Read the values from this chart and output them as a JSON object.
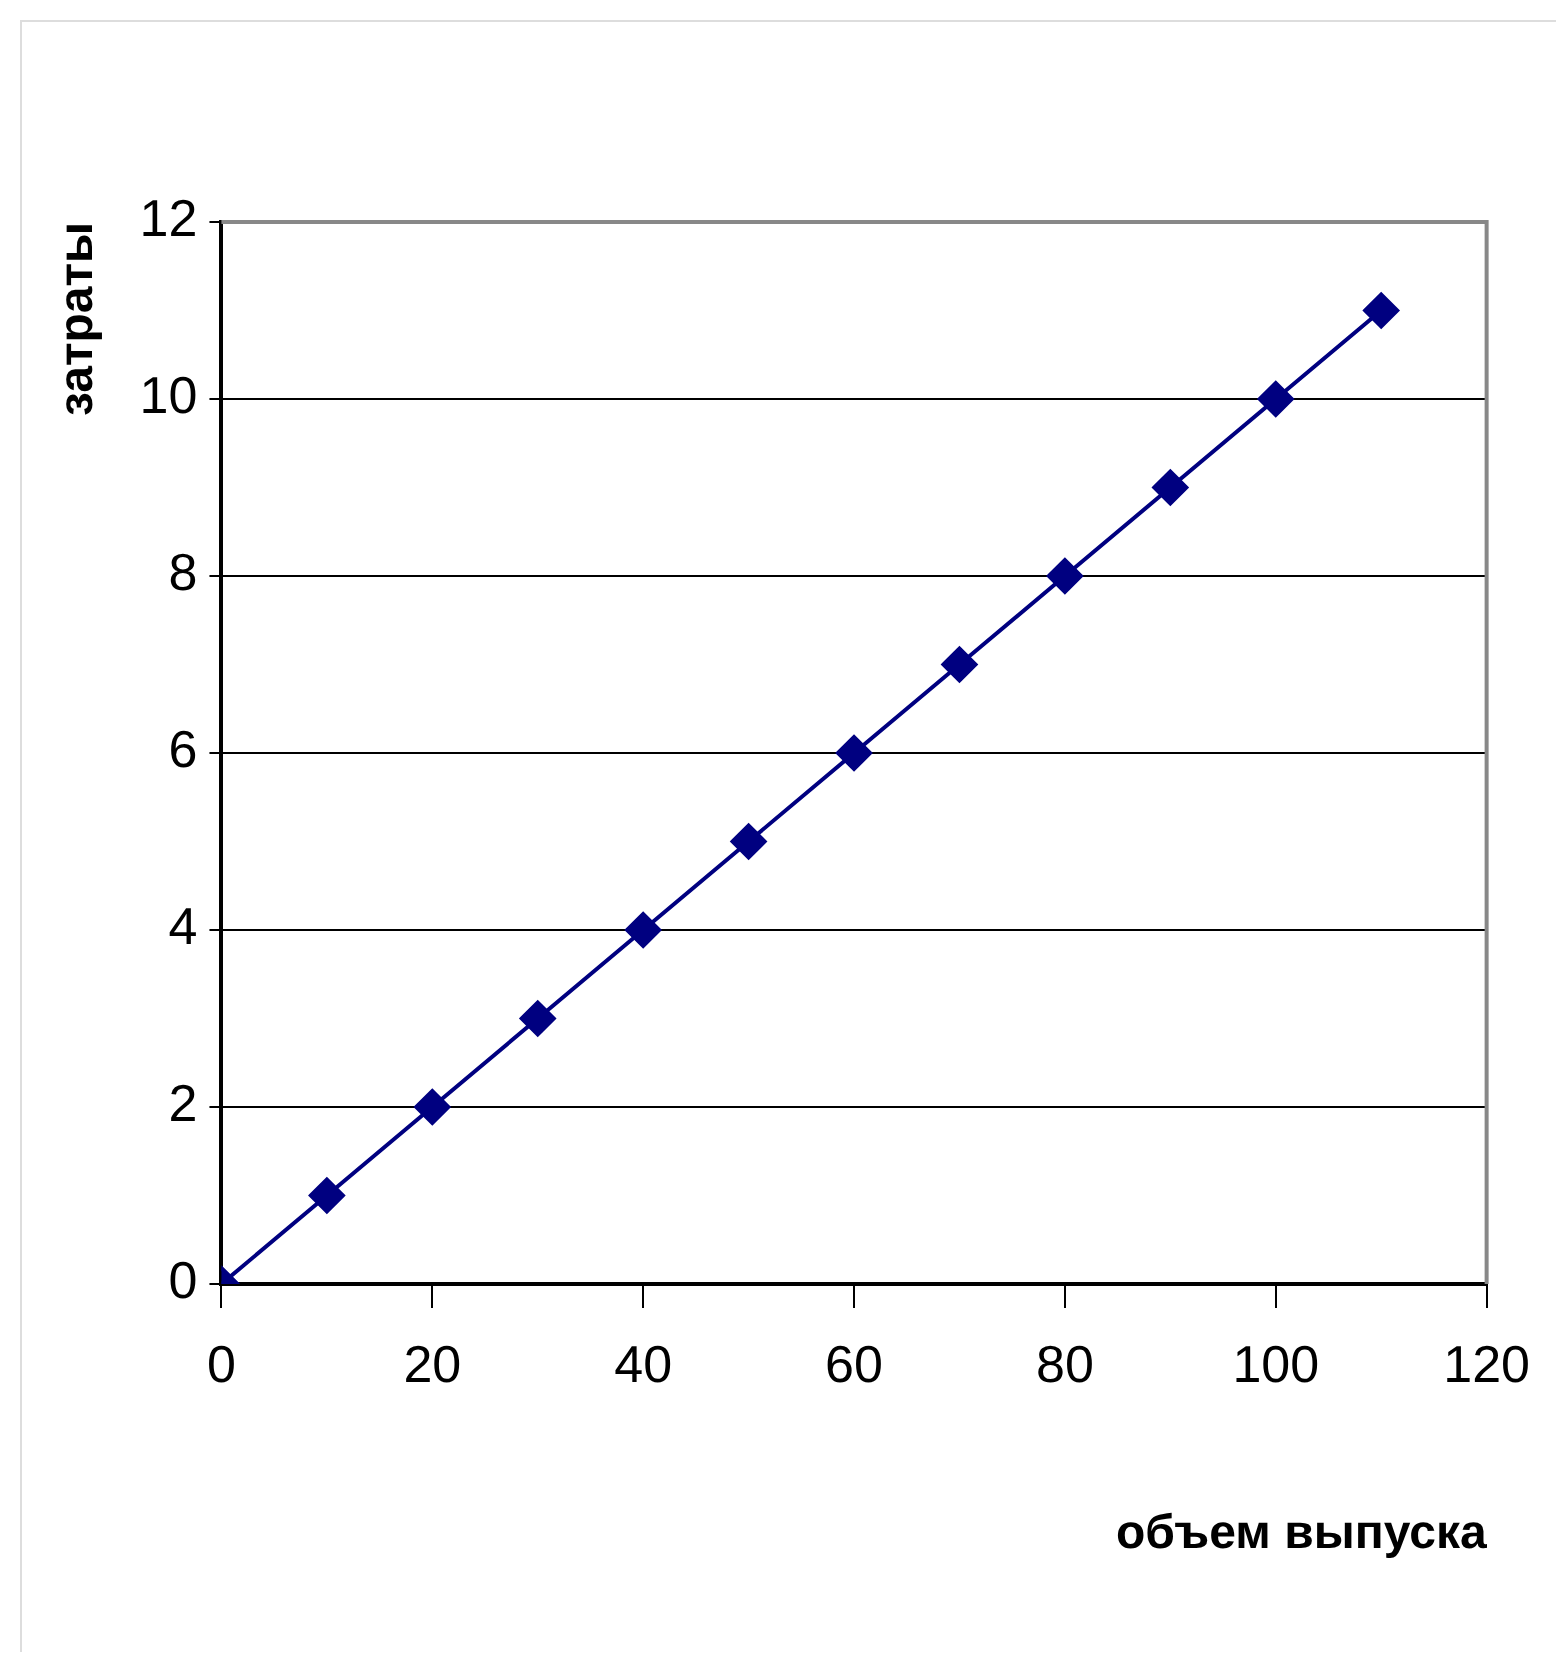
{
  "chart_data": {
    "type": "line",
    "xlabel": "объем выпуска",
    "ylabel": "затраты",
    "x": [
      0,
      10,
      20,
      30,
      40,
      50,
      60,
      70,
      80,
      90,
      100,
      110
    ],
    "series": [
      {
        "color": "#000080",
        "values": [
          0,
          1,
          2,
          3,
          4,
          5,
          6,
          7,
          8,
          9,
          10,
          11
        ]
      }
    ],
    "xlim": [
      0,
      120
    ],
    "xticks": [
      0,
      20,
      40,
      60,
      80,
      100,
      120
    ],
    "ylim": [
      0,
      12
    ],
    "yticks": [
      0,
      2,
      4,
      6,
      8,
      10,
      12
    ],
    "grid": "y",
    "legend": false,
    "marker": "diamond",
    "line_style": "solid"
  }
}
